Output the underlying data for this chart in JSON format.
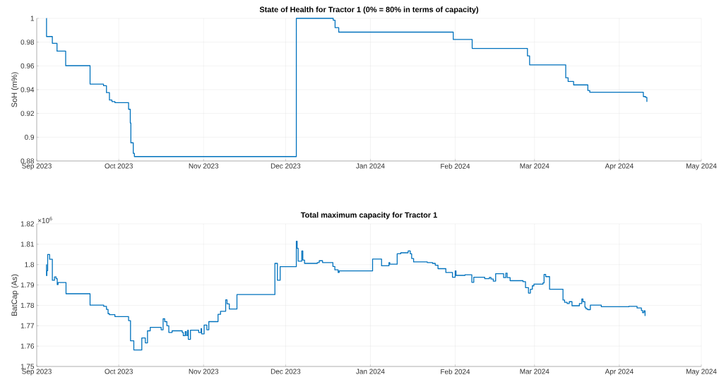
{
  "chart_data": [
    {
      "type": "step",
      "title": "State of Health for Tractor 1 (0% = 80% in terms of capacity)",
      "ylabel": "SoH (m%)",
      "color": "#0072bd",
      "grid": true,
      "x": [
        "2023-09-04T13:00",
        "2023-09-04T14:00",
        "2023-09-06T17:00",
        "2023-09-08T10:00",
        "2023-09-11T14:00",
        "2023-09-20T12:00",
        "2023-09-25T10:00",
        "2023-09-26T12:00",
        "2023-09-27T14:00",
        "2023-09-28T12:00",
        "2023-09-29T14:00",
        "2023-10-04T14:00",
        "2023-10-05T05:00",
        "2023-10-05T10:00",
        "2023-10-06T07:00",
        "2023-10-06T17:00",
        "2023-12-04T22:00",
        "2023-12-18T10:00",
        "2023-12-19T02:00",
        "2023-12-20T10:00",
        "2024-01-31T07:00",
        "2024-02-07T05:00",
        "2024-02-27T10:00",
        "2024-02-28T05:00",
        "2024-03-12T10:00",
        "2024-03-13T07:00",
        "2024-03-15T07:00",
        "2024-03-20T12:00",
        "2024-03-21T05:00",
        "2024-04-09T19:00",
        "2024-04-10T14:00",
        "2024-04-11T02:00"
      ],
      "values": [
        1.0,
        0.9847,
        0.979,
        0.9724,
        0.9602,
        0.9447,
        0.9433,
        0.9375,
        0.9313,
        0.93,
        0.9291,
        0.9235,
        0.912,
        0.8953,
        0.8864,
        0.8837,
        1.0,
        0.9984,
        0.9922,
        0.9884,
        0.9822,
        0.9747,
        0.9684,
        0.9609,
        0.95,
        0.9469,
        0.944,
        0.9393,
        0.9378,
        0.9342,
        0.9335,
        0.9298
      ],
      "xlim": [
        "2023-09-01",
        "2024-05-01"
      ],
      "xticks": [
        {
          "value": "2023-09-01",
          "label": "Sep 2023"
        },
        {
          "value": "2023-10-01",
          "label": "Oct 2023"
        },
        {
          "value": "2023-11-01",
          "label": "Nov 2023"
        },
        {
          "value": "2023-12-01",
          "label": "Dec 2023"
        },
        {
          "value": "2024-01-01",
          "label": "Jan 2024"
        },
        {
          "value": "2024-02-01",
          "label": "Feb 2024"
        },
        {
          "value": "2024-03-01",
          "label": "Mar 2024"
        },
        {
          "value": "2024-04-01",
          "label": "Apr 2024"
        },
        {
          "value": "2024-05-01",
          "label": "May 2024"
        }
      ],
      "ylim": [
        0.88,
        1
      ],
      "yticks": [
        0.88,
        0.9,
        0.92,
        0.94,
        0.96,
        0.98,
        1
      ]
    },
    {
      "type": "step",
      "title": "Total maximum capacity for Tractor 1",
      "ylabel": "BatCap (As)",
      "color": "#0072bd",
      "grid": true,
      "annotations": [
        "×10$^{6}$"
      ],
      "x": [
        "2023-09-04T13:00",
        "2023-09-04T14:00",
        "2023-09-04T17:00",
        "2023-09-05T00:00",
        "2023-09-05T17:00",
        "2023-09-06T17:00",
        "2023-09-07T12:00",
        "2023-09-08T02:00",
        "2023-09-08T12:00",
        "2023-09-08T19:00",
        "2023-09-11T17:00",
        "2023-09-20T12:00",
        "2023-09-25T12:00",
        "2023-09-26T12:00",
        "2023-09-27T02:00",
        "2023-09-27T14:00",
        "2023-09-29T14:00",
        "2023-10-04T14:00",
        "2023-10-05T07:00",
        "2023-10-06T12:00",
        "2023-10-09T10:00",
        "2023-10-10T17:00",
        "2023-10-11T12:00",
        "2023-10-12T12:00",
        "2023-10-16T12:00",
        "2023-10-17T05:00",
        "2023-10-17T19:00",
        "2023-10-18T14:00",
        "2023-10-19T07:00",
        "2023-10-20T12:00",
        "2023-10-24T05:00",
        "2023-10-24T14:00",
        "2023-10-25T07:00",
        "2023-10-25T17:00",
        "2023-10-26T05:00",
        "2023-10-26T10:00",
        "2023-10-27T05:00",
        "2023-10-30T05:00",
        "2023-10-31T02:00",
        "2023-10-31T07:00",
        "2023-11-01T05:00",
        "2023-11-02T05:00",
        "2023-11-02T22:00",
        "2023-11-06T07:00",
        "2023-11-07T05:00",
        "2023-11-09T02:00",
        "2023-11-09T14:00",
        "2023-11-10T10:00",
        "2023-11-13T05:00",
        "2023-11-27T02:00",
        "2023-11-28T00:00",
        "2023-11-29T00:00",
        "2023-12-04T22:00",
        "2023-12-05T05:00",
        "2023-12-05T14:00",
        "2023-12-06T22:00",
        "2023-12-07T07:00",
        "2023-12-07T22:00",
        "2023-12-12T14:00",
        "2023-12-13T07:00",
        "2023-12-14T12:00",
        "2023-12-18T07:00",
        "2023-12-19T00:00",
        "2023-12-20T05:00",
        "2023-12-20T14:00",
        "2024-01-01T19:00",
        "2024-01-05T02:00",
        "2024-01-07T19:00",
        "2024-01-08T02:00",
        "2024-01-10T19:00",
        "2024-01-12T02:00",
        "2024-01-14T19:00",
        "2024-01-15T14:00",
        "2024-01-16T02:00",
        "2024-01-16T19:00",
        "2024-01-21T19:00",
        "2024-01-23T17:00",
        "2024-01-24T17:00",
        "2024-01-25T17:00",
        "2024-01-28T14:00",
        "2024-01-31T00:00",
        "2024-02-01T00:00",
        "2024-02-01T07:00",
        "2024-02-04T14:00",
        "2024-02-07T02:00",
        "2024-02-07T19:00",
        "2024-02-11T19:00",
        "2024-02-13T12:00",
        "2024-02-14T02:00",
        "2024-02-14T22:00",
        "2024-02-15T19:00",
        "2024-02-18T17:00",
        "2024-02-19T12:00",
        "2024-02-20T00:00",
        "2024-02-21T02:00",
        "2024-02-25T19:00",
        "2024-02-26T17:00",
        "2024-02-27T19:00",
        "2024-02-28T12:00",
        "2024-02-29T05:00",
        "2024-02-29T19:00",
        "2024-03-04T02:00",
        "2024-03-04T12:00",
        "2024-03-05T02:00",
        "2024-03-06T12:00",
        "2024-03-11T10:00",
        "2024-03-12T00:00",
        "2024-03-12T22:00",
        "2024-03-13T17:00",
        "2024-03-14T17:00",
        "2024-03-17T10:00",
        "2024-03-18T07:00",
        "2024-03-18T17:00",
        "2024-03-19T10:00",
        "2024-03-19T19:00",
        "2024-03-20T10:00",
        "2024-03-21T10:00",
        "2024-03-25T10:00",
        "2024-04-04T12:00",
        "2024-04-07T12:00",
        "2024-04-09T02:00",
        "2024-04-09T12:00",
        "2024-04-10T00:00",
        "2024-04-10T10:00"
      ],
      "values": [
        1.8,
        1.7946,
        1.797,
        1.805,
        1.8026,
        1.7923,
        1.794,
        1.7931,
        1.7902,
        1.7912,
        1.7857,
        1.7801,
        1.7795,
        1.778,
        1.7759,
        1.7754,
        1.7745,
        1.7725,
        1.7626,
        1.7581,
        1.764,
        1.7616,
        1.7675,
        1.7692,
        1.768,
        1.7734,
        1.772,
        1.77,
        1.7667,
        1.7675,
        1.7667,
        1.7651,
        1.7671,
        1.7652,
        1.7678,
        1.7633,
        1.7678,
        1.7667,
        1.7686,
        1.766,
        1.7703,
        1.768,
        1.772,
        1.7756,
        1.7771,
        1.7827,
        1.7807,
        1.7782,
        1.7853,
        1.8006,
        1.7923,
        1.799,
        1.8115,
        1.808,
        1.8017,
        1.8067,
        1.8022,
        1.8006,
        1.801,
        1.8019,
        1.801,
        1.7991,
        1.7974,
        1.7961,
        1.7969,
        1.8027,
        1.7994,
        1.801,
        1.8002,
        1.8053,
        1.8058,
        1.8067,
        1.8053,
        1.803,
        1.8013,
        1.801,
        1.8006,
        1.7997,
        1.798,
        1.7961,
        1.7938,
        1.7969,
        1.7947,
        1.795,
        1.7913,
        1.7938,
        1.7931,
        1.7937,
        1.7929,
        1.7919,
        1.7955,
        1.7936,
        1.7958,
        1.7936,
        1.7921,
        1.7916,
        1.7887,
        1.786,
        1.7879,
        1.7896,
        1.7904,
        1.791,
        1.7952,
        1.7941,
        1.7879,
        1.7826,
        1.7815,
        1.7809,
        1.7818,
        1.7798,
        1.7809,
        1.7831,
        1.7818,
        1.7791,
        1.7783,
        1.7779,
        1.7801,
        1.7793,
        1.7795,
        1.7787,
        1.7775,
        1.7764,
        1.7773,
        1.7748
      ],
      "xlim": [
        "2023-09-01",
        "2024-05-01"
      ],
      "xticks": [
        {
          "value": "2023-09-01",
          "label": "Sep 2023"
        },
        {
          "value": "2023-10-01",
          "label": "Oct 2023"
        },
        {
          "value": "2023-11-01",
          "label": "Nov 2023"
        },
        {
          "value": "2023-12-01",
          "label": "Dec 2023"
        },
        {
          "value": "2024-01-01",
          "label": "Jan 2024"
        },
        {
          "value": "2024-02-01",
          "label": "Feb 2024"
        },
        {
          "value": "2024-03-01",
          "label": "Mar 2024"
        },
        {
          "value": "2024-04-01",
          "label": "Apr 2024"
        },
        {
          "value": "2024-05-01",
          "label": "May 2024"
        }
      ],
      "ylim": [
        1.75,
        1.82
      ],
      "yticks": [
        1.75,
        1.76,
        1.77,
        1.78,
        1.79,
        1.8,
        1.81,
        1.82
      ]
    }
  ]
}
